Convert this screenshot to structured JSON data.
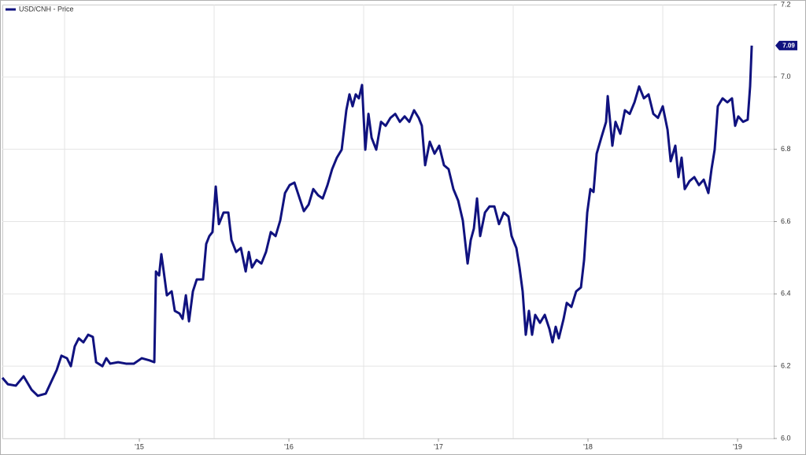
{
  "chart_data": {
    "type": "line",
    "legend": "top-left",
    "grid": true,
    "end_label": "7.09",
    "xlim": [
      2014.584,
      2019.742
    ],
    "xticks": [
      2015,
      2016,
      2017,
      2018,
      2019
    ],
    "xlabels": [
      {
        "value": 2015.5,
        "label": "'15"
      },
      {
        "value": 2016.5,
        "label": "'16"
      },
      {
        "value": 2017.5,
        "label": "'17"
      },
      {
        "value": 2018.5,
        "label": "'18"
      },
      {
        "value": 2019.5,
        "label": "'19"
      }
    ],
    "ylim": [
      6.0,
      7.2
    ],
    "yticks": [
      {
        "value": 6.0,
        "label": "6.0"
      },
      6.2,
      6.4,
      6.6,
      6.8,
      {
        "value": 7.0,
        "label": "7.0"
      },
      7.2
    ],
    "x": [
      2014.584,
      2014.621,
      2014.674,
      2014.726,
      2014.779,
      2014.821,
      2014.874,
      2014.911,
      2014.947,
      2014.979,
      2015.016,
      2015.042,
      2015.068,
      2015.095,
      2015.126,
      2015.158,
      2015.189,
      2015.211,
      2015.253,
      2015.279,
      2015.305,
      2015.358,
      2015.411,
      2015.463,
      2015.516,
      2015.568,
      2015.6,
      2015.611,
      2015.632,
      2015.647,
      2015.663,
      2015.684,
      2015.716,
      2015.737,
      2015.768,
      2015.789,
      2015.811,
      2015.832,
      2015.858,
      2015.884,
      2015.926,
      2015.947,
      2015.968,
      2015.989,
      2016.011,
      2016.032,
      2016.063,
      2016.095,
      2016.116,
      2016.147,
      2016.179,
      2016.211,
      2016.232,
      2016.253,
      2016.284,
      2016.316,
      2016.347,
      2016.379,
      2016.411,
      2016.442,
      2016.474,
      2016.505,
      2016.537,
      2016.568,
      2016.6,
      2016.632,
      2016.663,
      2016.695,
      2016.726,
      2016.758,
      2016.789,
      2016.821,
      2016.853,
      2016.884,
      2016.905,
      2016.926,
      2016.947,
      2016.968,
      2016.989,
      2017.011,
      2017.032,
      2017.053,
      2017.084,
      2017.116,
      2017.147,
      2017.179,
      2017.211,
      2017.242,
      2017.274,
      2017.305,
      2017.337,
      2017.368,
      2017.389,
      2017.411,
      2017.442,
      2017.474,
      2017.505,
      2017.537,
      2017.568,
      2017.6,
      2017.632,
      2017.663,
      2017.695,
      2017.716,
      2017.737,
      2017.758,
      2017.779,
      2017.811,
      2017.842,
      2017.874,
      2017.905,
      2017.937,
      2017.968,
      2017.989,
      2018.021,
      2018.042,
      2018.063,
      2018.084,
      2018.105,
      2018.126,
      2018.147,
      2018.179,
      2018.211,
      2018.242,
      2018.263,
      2018.284,
      2018.305,
      2018.337,
      2018.358,
      2018.389,
      2018.421,
      2018.453,
      2018.474,
      2018.495,
      2018.516,
      2018.537,
      2018.558,
      2018.589,
      2018.621,
      2018.632,
      2018.663,
      2018.684,
      2018.716,
      2018.747,
      2018.779,
      2018.811,
      2018.842,
      2018.874,
      2018.905,
      2018.937,
      2018.968,
      2019.0,
      2019.032,
      2019.053,
      2019.084,
      2019.105,
      2019.126,
      2019.147,
      2019.179,
      2019.211,
      2019.242,
      2019.274,
      2019.305,
      2019.326,
      2019.347,
      2019.368,
      2019.4,
      2019.432,
      2019.463,
      2019.484,
      2019.505,
      2019.537,
      2019.568,
      2019.584,
      2019.595
    ],
    "series": [
      {
        "name": "USD/CNH - Price",
        "color": "#10127f",
        "values": [
          6.168,
          6.15,
          6.146,
          6.172,
          6.135,
          6.118,
          6.124,
          6.157,
          6.189,
          6.229,
          6.222,
          6.2,
          6.255,
          6.277,
          6.266,
          6.287,
          6.281,
          6.211,
          6.2,
          6.222,
          6.207,
          6.211,
          6.207,
          6.207,
          6.222,
          6.216,
          6.211,
          6.462,
          6.451,
          6.51,
          6.462,
          6.396,
          6.407,
          6.353,
          6.346,
          6.331,
          6.396,
          6.324,
          6.407,
          6.44,
          6.44,
          6.538,
          6.56,
          6.571,
          6.697,
          6.593,
          6.625,
          6.625,
          6.549,
          6.516,
          6.527,
          6.462,
          6.516,
          6.473,
          6.494,
          6.484,
          6.516,
          6.571,
          6.56,
          6.603,
          6.679,
          6.701,
          6.708,
          6.669,
          6.629,
          6.647,
          6.69,
          6.673,
          6.664,
          6.701,
          6.745,
          6.777,
          6.799,
          6.908,
          6.952,
          6.919,
          6.952,
          6.941,
          6.978,
          6.799,
          6.898,
          6.832,
          6.799,
          6.876,
          6.865,
          6.887,
          6.898,
          6.876,
          6.891,
          6.876,
          6.908,
          6.887,
          6.865,
          6.756,
          6.821,
          6.788,
          6.81,
          6.756,
          6.745,
          6.69,
          6.658,
          6.603,
          6.484,
          6.549,
          6.581,
          6.664,
          6.56,
          6.625,
          6.642,
          6.642,
          6.593,
          6.625,
          6.614,
          6.56,
          6.527,
          6.473,
          6.407,
          6.287,
          6.353,
          6.287,
          6.342,
          6.32,
          6.342,
          6.303,
          6.266,
          6.309,
          6.277,
          6.331,
          6.375,
          6.364,
          6.407,
          6.418,
          6.494,
          6.625,
          6.69,
          6.682,
          6.788,
          6.832,
          6.876,
          6.947,
          6.81,
          6.876,
          6.843,
          6.908,
          6.898,
          6.93,
          6.974,
          6.941,
          6.952,
          6.898,
          6.887,
          6.919,
          6.854,
          6.767,
          6.81,
          6.723,
          6.777,
          6.69,
          6.712,
          6.723,
          6.701,
          6.716,
          6.679,
          6.745,
          6.799,
          6.919,
          6.941,
          6.93,
          6.941,
          6.865,
          6.891,
          6.876,
          6.882,
          6.974,
          7.087
        ]
      }
    ]
  }
}
